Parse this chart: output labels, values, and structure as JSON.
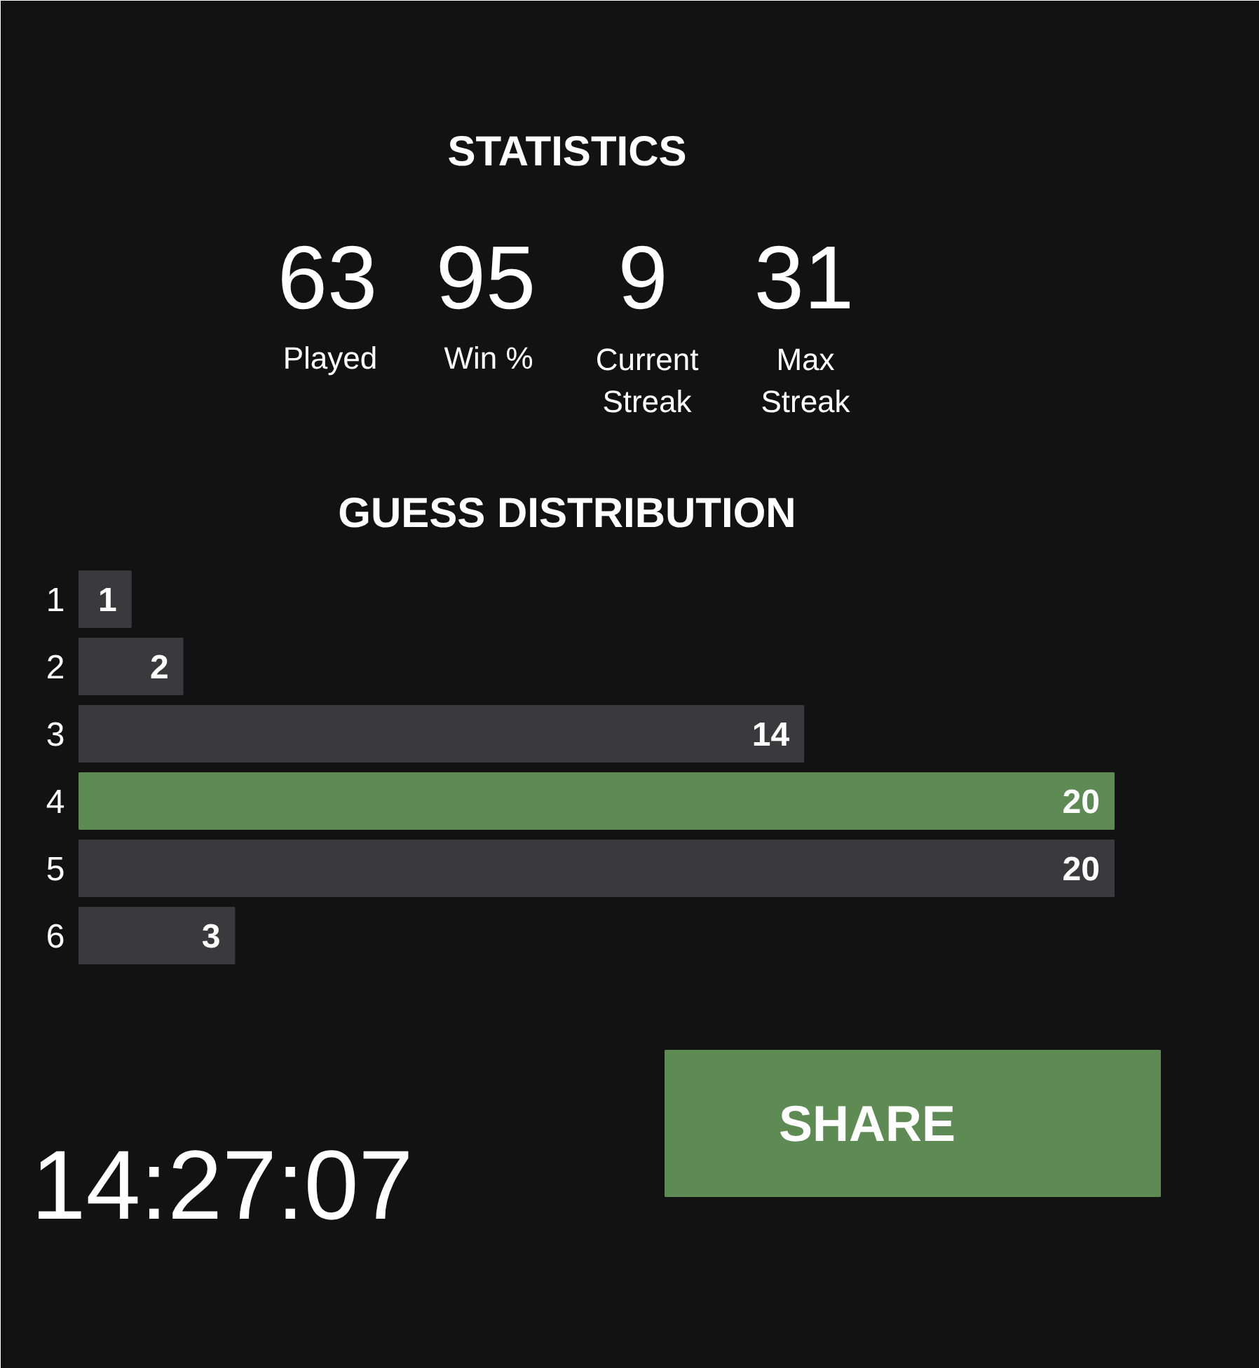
{
  "chart_data": {
    "type": "bar",
    "orientation": "horizontal",
    "title": "GUESS DISTRIBUTION",
    "categories": [
      "1",
      "2",
      "3",
      "4",
      "5",
      "6"
    ],
    "values": [
      1,
      2,
      14,
      20,
      20,
      3
    ],
    "colors": [
      "#3a3a3c",
      "#3a3a3c",
      "#3a3a3c",
      "#5e8b54",
      "#3a3a3c",
      "#3a3a3c"
    ],
    "data_labels": true,
    "grid": false,
    "annotations": [
      "STATISTICS",
      "63",
      "Played",
      "95",
      "Win %",
      "9",
      "Current\nStreak",
      "31",
      "Max\nStreak",
      "14:27:07",
      "SHARE"
    ]
  }
}
